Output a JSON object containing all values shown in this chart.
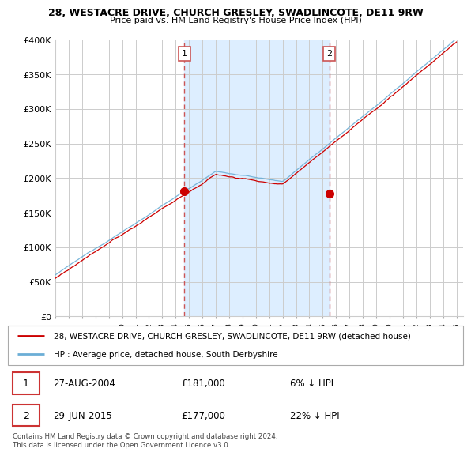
{
  "title1": "28, WESTACRE DRIVE, CHURCH GRESLEY, SWADLINCOTE, DE11 9RW",
  "title2": "Price paid vs. HM Land Registry's House Price Index (HPI)",
  "ylim": [
    0,
    400000
  ],
  "yticks": [
    0,
    50000,
    100000,
    150000,
    200000,
    250000,
    300000,
    350000,
    400000
  ],
  "ytick_labels": [
    "£0",
    "£50K",
    "£100K",
    "£150K",
    "£200K",
    "£250K",
    "£300K",
    "£350K",
    "£400K"
  ],
  "sale1_date": 2004.65,
  "sale1_price": 181000,
  "sale2_date": 2015.49,
  "sale2_price": 177000,
  "line_color_hpi": "#6baed6",
  "line_color_paid": "#cc0000",
  "vline_color": "#cc5555",
  "legend_label1": "28, WESTACRE DRIVE, CHURCH GRESLEY, SWADLINCOTE, DE11 9RW (detached house)",
  "legend_label2": "HPI: Average price, detached house, South Derbyshire",
  "annotation1_date": "27-AUG-2004",
  "annotation1_price": "£181,000",
  "annotation1_pct": "6% ↓ HPI",
  "annotation2_date": "29-JUN-2015",
  "annotation2_price": "£177,000",
  "annotation2_pct": "22% ↓ HPI",
  "footer": "Contains HM Land Registry data © Crown copyright and database right 2024.\nThis data is licensed under the Open Government Licence v3.0.",
  "bg_color": "#ffffff",
  "plot_bg_color": "#ffffff",
  "shading_color": "#ddeeff",
  "grid_color": "#cccccc",
  "xlim_left": 1995,
  "xlim_right": 2025.5
}
